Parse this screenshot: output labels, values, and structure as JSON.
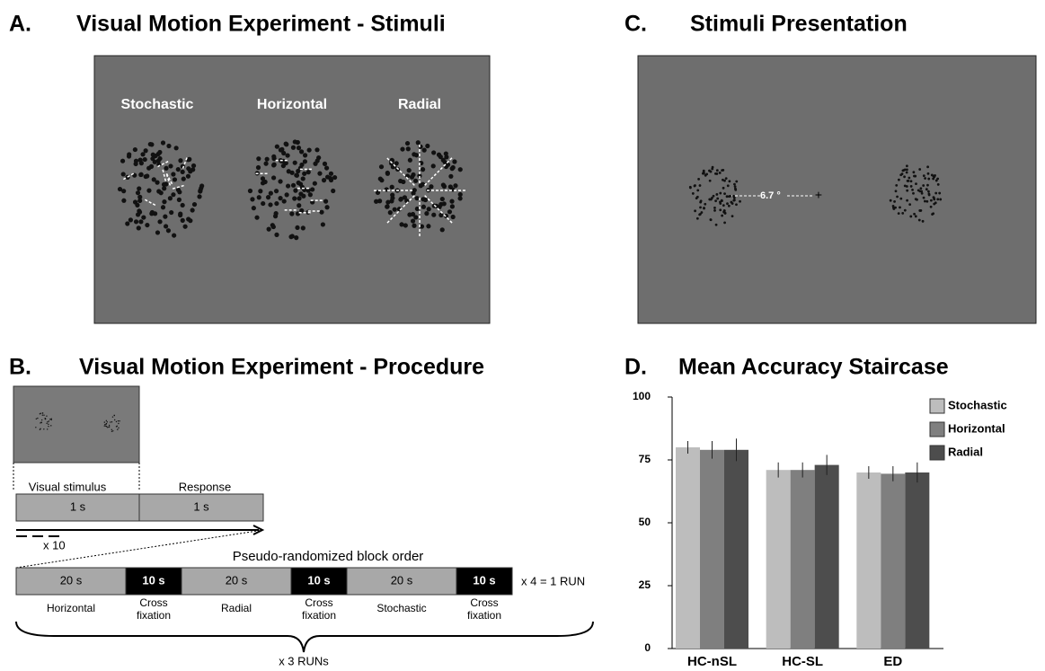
{
  "panel_a": {
    "label": "A.",
    "title": "Visual Motion Experiment - Stimuli",
    "stimuli": [
      "Stochastic",
      "Horizontal",
      "Radial"
    ]
  },
  "panel_b": {
    "label": "B.",
    "title": "Visual Motion Experiment - Procedure",
    "trial": {
      "labels": [
        "Visual stimulus",
        "Response"
      ],
      "durations": [
        "1 s",
        "1 s"
      ],
      "repeat": "x 10"
    },
    "block_order": "Pseudo-randomized block order",
    "blocks": [
      {
        "duration": "20 s",
        "label": [
          "Horizontal"
        ]
      },
      {
        "duration": "10 s",
        "label": [
          "Cross",
          "fixation"
        ]
      },
      {
        "duration": "20 s",
        "label": [
          "Radial"
        ]
      },
      {
        "duration": "10 s",
        "label": [
          "Cross",
          "fixation"
        ]
      },
      {
        "duration": "20 s",
        "label": [
          "Stochastic"
        ]
      },
      {
        "duration": "10 s",
        "label": [
          "Cross",
          "fixation"
        ]
      }
    ],
    "run_repeat": "x 4 = 1 RUN",
    "runs": "x 3 RUNs"
  },
  "panel_c": {
    "label": "C.",
    "title": "Stimuli Presentation",
    "eccentricity": "6.7 °",
    "fixation": "+"
  },
  "chart_data": {
    "type": "bar",
    "label": "D.",
    "title": "Mean Accuracy Staircase",
    "categories": [
      "HC-nSL",
      "HC-SL",
      "ED"
    ],
    "series": [
      {
        "name": "Stochastic",
        "color": "#bdbdbd",
        "values": [
          80,
          71,
          70
        ],
        "errors": [
          2.5,
          3,
          2.5
        ]
      },
      {
        "name": "Horizontal",
        "color": "#7f7f7f",
        "values": [
          79,
          71,
          69.5
        ],
        "errors": [
          3.5,
          3,
          3
        ]
      },
      {
        "name": "Radial",
        "color": "#4d4d4d",
        "values": [
          79,
          73,
          70
        ],
        "errors": [
          4.5,
          4,
          4
        ]
      }
    ],
    "ylim": [
      0,
      100
    ],
    "yticks": [
      0,
      25,
      50,
      75,
      100
    ],
    "legend": "upper right"
  }
}
